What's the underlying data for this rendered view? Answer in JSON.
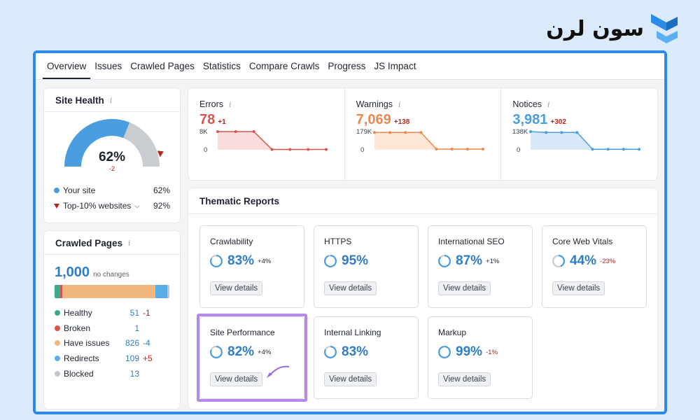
{
  "brand": {
    "name": "سون لرن"
  },
  "tabs": [
    "Overview",
    "Issues",
    "Crawled Pages",
    "Statistics",
    "Compare Crawls",
    "Progress",
    "JS Impact"
  ],
  "site_health": {
    "title": "Site Health",
    "info": "i",
    "value": "62%",
    "delta": "-2",
    "your_site_label": "Your site",
    "your_site_value": "62%",
    "top_label": "Top-10% websites",
    "top_value": "92%",
    "gauge_fraction": 0.62,
    "top_fraction": 0.92
  },
  "crawled_pages": {
    "title": "Crawled Pages",
    "total": "1,000",
    "total_note": "no changes",
    "rows": [
      {
        "label": "Healthy",
        "value": "51",
        "delta": "-1",
        "color": "#3aaa8a",
        "delta_color": "#b3261e",
        "count": 51
      },
      {
        "label": "Broken",
        "value": "1",
        "delta": "",
        "color": "#d9534f",
        "delta_color": "#1f2430",
        "count": 1
      },
      {
        "label": "Have issues",
        "value": "826",
        "delta": "-4",
        "color": "#f2b77e",
        "delta_color": "#2f7ec4",
        "count": 826
      },
      {
        "label": "Redirects",
        "value": "109",
        "delta": "+5",
        "color": "#5aaee8",
        "delta_color": "#b3261e",
        "count": 109
      },
      {
        "label": "Blocked",
        "value": "13",
        "delta": "",
        "color": "#c2c6cc",
        "delta_color": "#1f2430",
        "count": 13
      }
    ]
  },
  "issues": [
    {
      "label": "Errors",
      "value": "78",
      "delta": "+1",
      "color": "#d9534f",
      "fill": "#fbdcdc",
      "ymax": "8K",
      "ymin": "0",
      "series": [
        1.0,
        1.0,
        1.0,
        0.02,
        0.02,
        0.02,
        0.02
      ]
    },
    {
      "label": "Warnings",
      "value": "7,069",
      "delta": "+138",
      "color": "#e8894e",
      "fill": "#fde6d4",
      "ymax": "179K",
      "ymin": "0",
      "series": [
        0.95,
        0.95,
        0.95,
        0.95,
        0.04,
        0.04,
        0.04,
        0.04
      ]
    },
    {
      "label": "Notices",
      "value": "3,981",
      "delta": "+302",
      "color": "#4a9ee0",
      "fill": "#d7e9f8",
      "ymax": "138K",
      "ymin": "0",
      "series": [
        1.0,
        0.95,
        0.95,
        0.95,
        0.03,
        0.03,
        0.03,
        0.03
      ]
    }
  ],
  "thematic": {
    "title": "Thematic Reports",
    "button_label": "View details",
    "reports": [
      {
        "name": "Crawlability",
        "pct": "83%",
        "delta": "+4%",
        "delta_color": "#1f2430",
        "fraction": 0.83
      },
      {
        "name": "HTTPS",
        "pct": "95%",
        "delta": "",
        "delta_color": "#1f2430",
        "fraction": 0.95
      },
      {
        "name": "International SEO",
        "pct": "87%",
        "delta": "+1%",
        "delta_color": "#1f2430",
        "fraction": 0.87
      },
      {
        "name": "Core Web Vitals",
        "pct": "44%",
        "delta": "-23%",
        "delta_color": "#b3261e",
        "fraction": 0.44
      },
      {
        "name": "Site Performance",
        "pct": "82%",
        "delta": "+4%",
        "delta_color": "#1f2430",
        "fraction": 0.82
      },
      {
        "name": "Internal Linking",
        "pct": "83%",
        "delta": "",
        "delta_color": "#1f2430",
        "fraction": 0.83
      },
      {
        "name": "Markup",
        "pct": "99%",
        "delta": "-1%",
        "delta_color": "#b3261e",
        "fraction": 0.99
      }
    ]
  }
}
